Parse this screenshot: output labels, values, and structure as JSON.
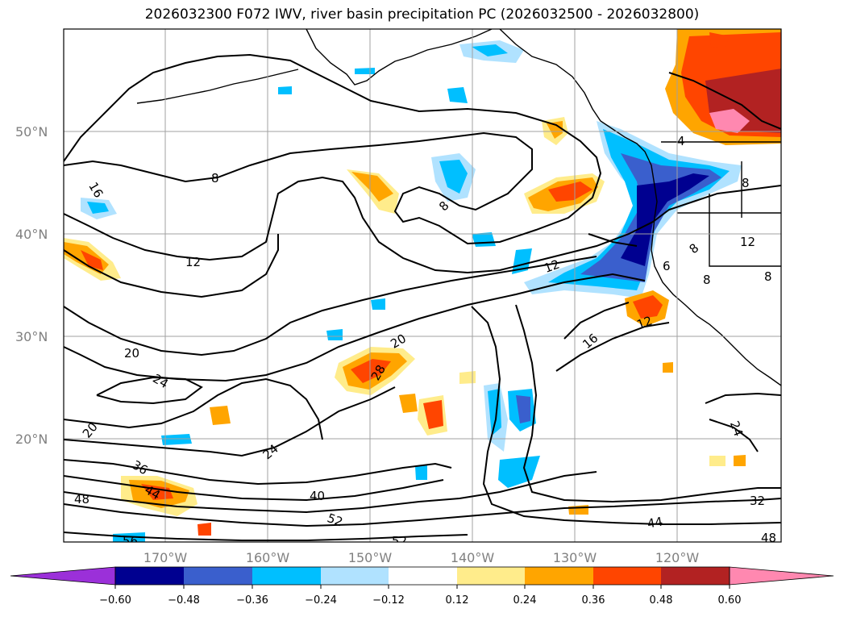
{
  "title": "2026032300 F072 IWV, river basin precipitation PC (2026032500 - 2026032800)",
  "lat_labels": [
    "50°N",
    "40°N",
    "30°N",
    "20°N"
  ],
  "lon_labels": [
    "170°W",
    "160°W",
    "150°W",
    "140°W",
    "130°W",
    "120°W"
  ],
  "contour_labels": [
    "16",
    "8",
    "8",
    "12",
    "12",
    "20",
    "24",
    "20",
    "28",
    "16",
    "12",
    "6",
    "8",
    "8",
    "12",
    "8",
    "20",
    "24",
    "36",
    "44",
    "48",
    "40",
    "52",
    "56",
    "52",
    "44",
    "32",
    "24",
    "48",
    "8",
    "4"
  ],
  "colorbar": {
    "ticks": [
      "−0.60",
      "−0.48",
      "−0.36",
      "−0.24",
      "−0.12",
      "0.12",
      "0.24",
      "0.36",
      "0.48",
      "0.60"
    ],
    "colors": [
      "#9b30d9",
      "#000090",
      "#3a5fcd",
      "#00bfff",
      "#b0e2ff",
      "#ffffff",
      "#ffec8b",
      "#ffa500",
      "#ff4500",
      "#b22222",
      "#ff88b0"
    ]
  },
  "colors": {
    "contour": "#000000",
    "grid": "#a0a0a0",
    "label": "#808080"
  }
}
